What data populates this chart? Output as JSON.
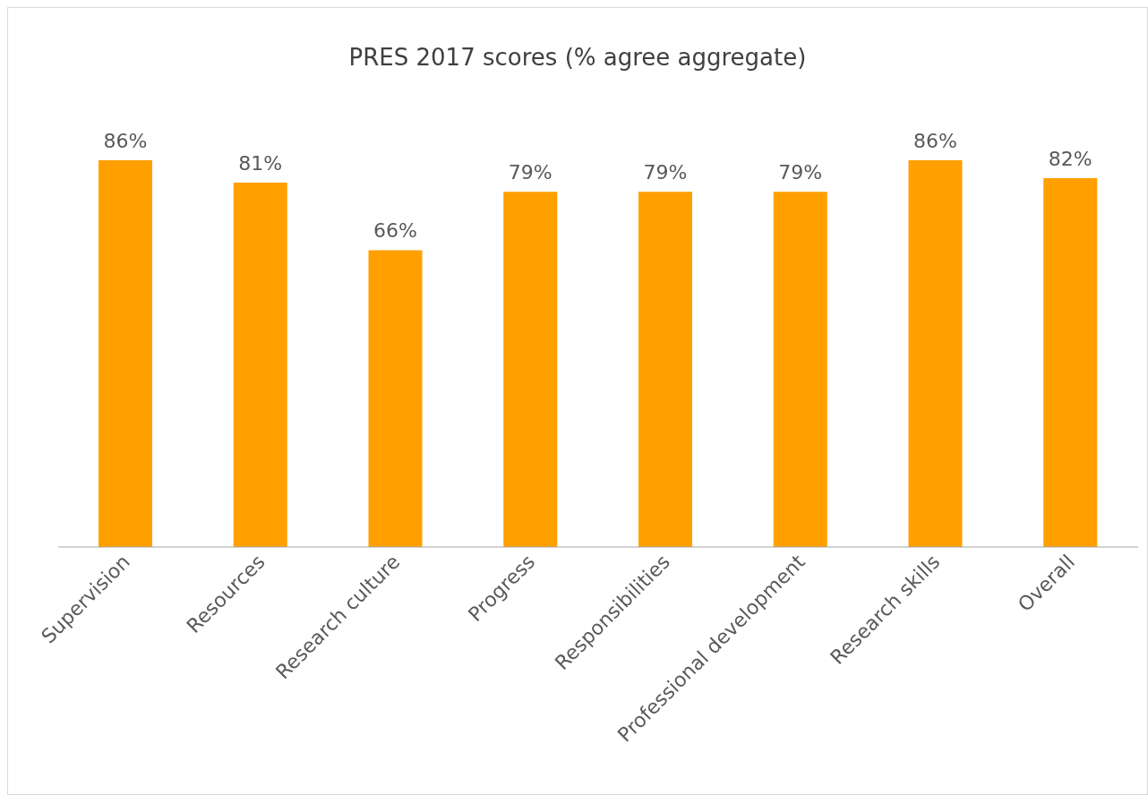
{
  "chart_data": {
    "type": "bar",
    "title": "PRES 2017 scores (% agree aggregate)",
    "categories": [
      "Supervision",
      "Resources",
      "Research culture",
      "Progress",
      "Responsibilities",
      "Professional development",
      "Research skills",
      "Overall"
    ],
    "values": [
      86,
      81,
      66,
      79,
      79,
      79,
      86,
      82
    ],
    "value_labels": [
      "86%",
      "81%",
      "66%",
      "79%",
      "79%",
      "79%",
      "86%",
      "82%"
    ],
    "color": "#ffa000"
  }
}
